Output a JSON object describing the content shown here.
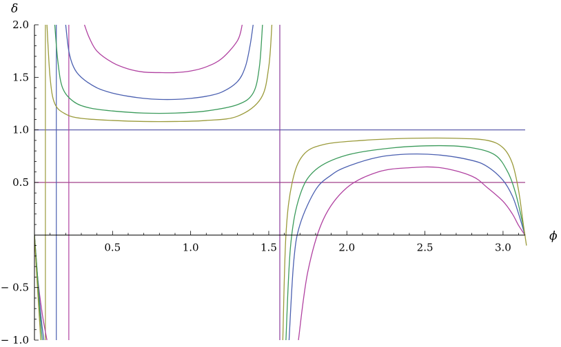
{
  "chart_data": {
    "type": "line",
    "xlabel": "ϕ",
    "ylabel": "δ",
    "xlim": [
      0,
      3.1416
    ],
    "ylim": [
      -1.0,
      2.0
    ],
    "x_ticks": [
      {
        "value": 0.5,
        "label": "0.5"
      },
      {
        "value": 1.0,
        "label": "1.0"
      },
      {
        "value": 1.5,
        "label": "1.5"
      },
      {
        "value": 2.0,
        "label": "2.0"
      },
      {
        "value": 2.5,
        "label": "2.5"
      },
      {
        "value": 3.0,
        "label": "3.0"
      }
    ],
    "y_ticks": [
      {
        "value": 2.0,
        "label": "2.0"
      },
      {
        "value": 1.5,
        "label": "1.5"
      },
      {
        "value": 1.0,
        "label": "1.0"
      },
      {
        "value": 0.5,
        "label": "0.5"
      },
      {
        "value": -0.5,
        "label": "− 0.5"
      },
      {
        "value": -1.0,
        "label": "− 1.0"
      }
    ],
    "grid": false,
    "reference_lines": [
      {
        "orientation": "horizontal",
        "value": 1.0,
        "color": "#4a4aa0"
      },
      {
        "orientation": "horizontal",
        "value": 0.5,
        "color": "#a0408a"
      },
      {
        "orientation": "vertical",
        "value": 0.07,
        "color": "#9a9a3a"
      },
      {
        "orientation": "vertical",
        "value": 0.14,
        "color": "#4a5fb0"
      },
      {
        "orientation": "vertical",
        "value": 0.22,
        "color": "#b040a0"
      },
      {
        "orientation": "vertical",
        "value": 1.5708,
        "color": "#8a3a9a"
      }
    ],
    "series": [
      {
        "color": "#b040a0",
        "segments": [
          {
            "x": [
              0.0,
              0.02,
              0.05,
              0.08
            ],
            "y": [
              -0.02,
              -0.4,
              -0.75,
              -1.0
            ]
          },
          {
            "x": [
              0.32,
              0.35,
              0.4,
              0.5,
              0.6,
              0.7,
              0.8,
              0.9,
              1.0,
              1.1,
              1.2,
              1.3,
              1.33
            ],
            "y": [
              2.0,
              1.88,
              1.75,
              1.64,
              1.58,
              1.55,
              1.545,
              1.545,
              1.56,
              1.6,
              1.68,
              1.85,
              2.0
            ]
          },
          {
            "x": [
              1.69,
              1.75,
              1.85,
              2.0,
              2.2,
              2.4,
              2.6,
              2.8,
              2.9,
              3.0,
              3.06,
              3.1,
              3.14
            ],
            "y": [
              -1.0,
              -0.35,
              0.15,
              0.45,
              0.6,
              0.64,
              0.64,
              0.56,
              0.45,
              0.32,
              0.2,
              0.09,
              0.0
            ]
          }
        ]
      },
      {
        "color": "#4a5fb0",
        "segments": [
          {
            "x": [
              0.0,
              0.02,
              0.04,
              0.06
            ],
            "y": [
              0.0,
              -0.4,
              -0.75,
              -1.0
            ]
          },
          {
            "x": [
              0.2,
              0.22,
              0.25,
              0.3,
              0.4,
              0.5,
              0.6,
              0.7,
              0.8,
              0.9,
              1.0,
              1.1,
              1.2,
              1.3,
              1.35,
              1.38,
              1.4
            ],
            "y": [
              2.0,
              1.75,
              1.6,
              1.5,
              1.4,
              1.35,
              1.32,
              1.3,
              1.29,
              1.29,
              1.3,
              1.32,
              1.36,
              1.46,
              1.6,
              1.8,
              2.0
            ]
          },
          {
            "x": [
              1.63,
              1.66,
              1.7,
              1.8,
              1.9,
              2.0,
              2.2,
              2.4,
              2.6,
              2.8,
              2.9,
              3.0,
              3.06,
              3.1,
              3.14
            ],
            "y": [
              -1.0,
              -0.25,
              0.1,
              0.43,
              0.57,
              0.65,
              0.74,
              0.77,
              0.76,
              0.71,
              0.65,
              0.52,
              0.37,
              0.2,
              0.0
            ]
          }
        ]
      },
      {
        "color": "#3a9a5a",
        "segments": [
          {
            "x": [
              0.0,
              0.02,
              0.035,
              0.05
            ],
            "y": [
              0.0,
              -0.4,
              -0.75,
              -1.0
            ]
          },
          {
            "x": [
              0.13,
              0.15,
              0.18,
              0.25,
              0.35,
              0.5,
              0.7,
              0.9,
              1.1,
              1.3,
              1.4,
              1.44,
              1.46
            ],
            "y": [
              2.0,
              1.65,
              1.4,
              1.27,
              1.21,
              1.18,
              1.16,
              1.16,
              1.18,
              1.24,
              1.35,
              1.6,
              2.0
            ]
          },
          {
            "x": [
              1.61,
              1.64,
              1.7,
              1.8,
              2.0,
              2.3,
              2.6,
              2.8,
              2.95,
              3.03,
              3.08,
              3.12,
              3.14
            ],
            "y": [
              -1.0,
              -0.1,
              0.38,
              0.62,
              0.76,
              0.83,
              0.85,
              0.83,
              0.76,
              0.6,
              0.4,
              0.15,
              0.0
            ]
          }
        ]
      },
      {
        "color": "#9a9a3a",
        "segments": [
          {
            "x": [
              0.0,
              0.015,
              0.03,
              0.04
            ],
            "y": [
              0.0,
              -0.4,
              -0.75,
              -1.0
            ]
          },
          {
            "x": [
              0.08,
              0.1,
              0.13,
              0.2,
              0.3,
              0.5,
              0.7,
              0.9,
              1.1,
              1.3,
              1.45,
              1.5,
              1.52
            ],
            "y": [
              2.0,
              1.5,
              1.25,
              1.15,
              1.11,
              1.09,
              1.08,
              1.08,
              1.09,
              1.13,
              1.3,
              1.6,
              2.0
            ]
          },
          {
            "x": [
              1.59,
              1.61,
              1.65,
              1.72,
              1.85,
              2.1,
              2.4,
              2.7,
              2.9,
              3.0,
              3.06,
              3.1,
              3.13,
              3.15
            ],
            "y": [
              -1.0,
              0.0,
              0.5,
              0.76,
              0.86,
              0.9,
              0.92,
              0.92,
              0.9,
              0.83,
              0.68,
              0.42,
              0.1,
              -0.1
            ]
          }
        ]
      }
    ]
  }
}
